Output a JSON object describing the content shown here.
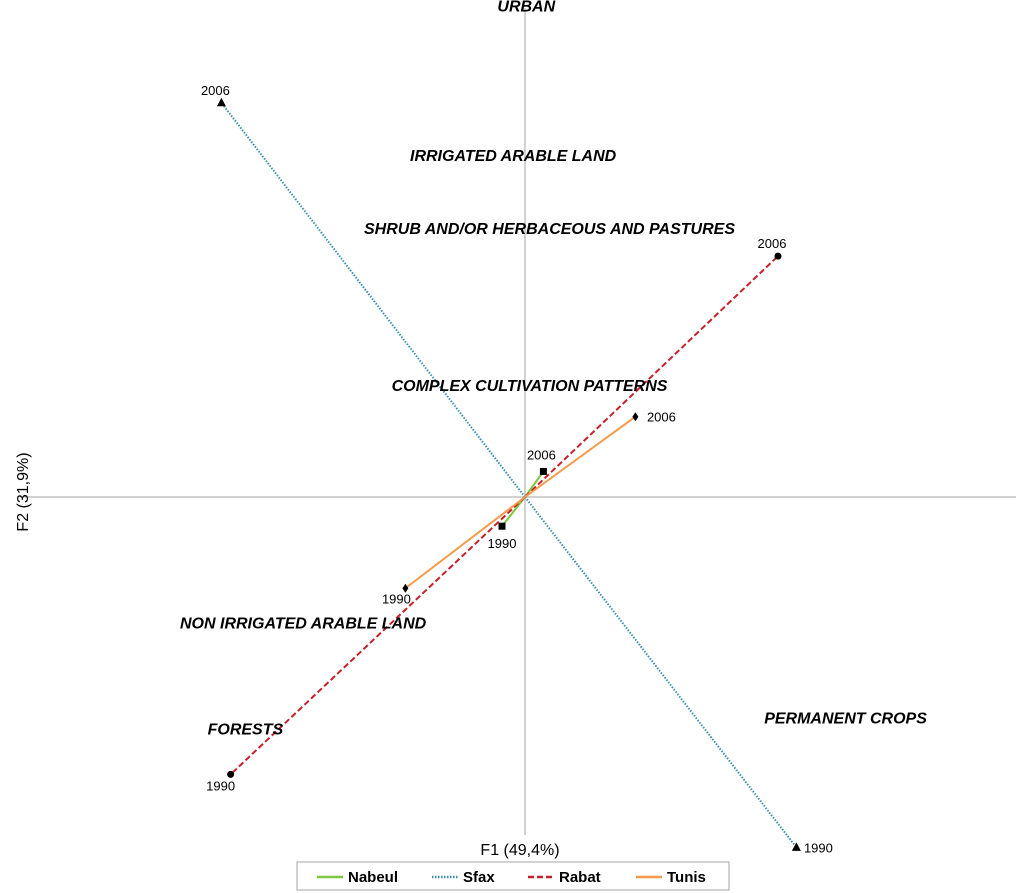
{
  "chart_data": {
    "type": "scatter",
    "title": "",
    "xlabel": "F1 (49,4%)",
    "ylabel": "F2 (31,9%)",
    "xlim": [
      -1.0,
      1.0
    ],
    "ylim": [
      -1.0,
      1.0
    ],
    "grid": false,
    "legend_position": "bottom",
    "series": [
      {
        "name": "Nabeul",
        "color": "#7dc73f",
        "dash": "solid",
        "marker": "square",
        "points": [
          {
            "x": -0.05,
            "y": -0.08,
            "label": "1990"
          },
          {
            "x": 0.04,
            "y": 0.07,
            "label": "2006"
          }
        ]
      },
      {
        "name": "Sfax",
        "color": "#3c8fb0",
        "dash": "dotted",
        "marker": "triangle",
        "points": [
          {
            "x": 0.59,
            "y": -0.96,
            "label": "1990"
          },
          {
            "x": -0.66,
            "y": 1.08,
            "label": "2006"
          }
        ]
      },
      {
        "name": "Rabat",
        "color": "#c8202a",
        "dash": "dashed",
        "marker": "circle",
        "points": [
          {
            "x": -0.64,
            "y": -0.76,
            "label": "1990"
          },
          {
            "x": 0.55,
            "y": 0.66,
            "label": "2006"
          }
        ]
      },
      {
        "name": "Tunis",
        "color": "#f59a4a",
        "dash": "solid",
        "marker": "diamond",
        "points": [
          {
            "x": -0.26,
            "y": -0.25,
            "label": "1990"
          },
          {
            "x": 0.24,
            "y": 0.22,
            "label": "2006"
          }
        ]
      }
    ],
    "annotations": [
      {
        "text": "URBAN",
        "x": -0.06,
        "y": 1.33
      },
      {
        "text": "IRRIGATED ARABLE LAND",
        "x": -0.25,
        "y": 0.92
      },
      {
        "text": "SHRUB AND/OR HERBACEOUS AND PASTURES",
        "x": -0.35,
        "y": 0.72
      },
      {
        "text": "COMPLEX CULTIVATION PATTERNS",
        "x": -0.29,
        "y": 0.29
      },
      {
        "text": "NON IRRIGATED ARABLE LAND",
        "x": -0.75,
        "y": -0.36
      },
      {
        "text": "FORESTS",
        "x": -0.69,
        "y": -0.65
      },
      {
        "text": "PERMANENT CROPS",
        "x": 0.52,
        "y": -0.62
      }
    ]
  }
}
